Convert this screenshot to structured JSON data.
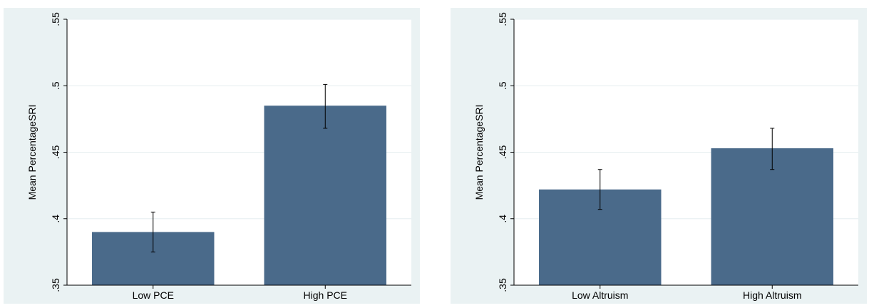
{
  "chart_data": [
    {
      "type": "bar",
      "categories": [
        "Low PCE",
        "High PCE"
      ],
      "values": [
        0.39,
        0.485
      ],
      "ci_low": [
        0.375,
        0.468
      ],
      "ci_high": [
        0.405,
        0.501
      ],
      "ylabel": "Mean PercentageSRI",
      "xlabel": "",
      "ylim": [
        0.35,
        0.55
      ],
      "yticks": [
        ".35",
        ".4",
        ".45",
        ".5",
        ".55"
      ],
      "ytick_values": [
        0.35,
        0.4,
        0.45,
        0.5,
        0.55
      ],
      "grid": true,
      "bar_color": "#4a6a8a"
    },
    {
      "type": "bar",
      "categories": [
        "Low Altruism",
        "High Altruism"
      ],
      "values": [
        0.422,
        0.453
      ],
      "ci_low": [
        0.407,
        0.437
      ],
      "ci_high": [
        0.437,
        0.468
      ],
      "ylabel": "Mean PercentageSRI",
      "xlabel": "",
      "ylim": [
        0.35,
        0.55
      ],
      "yticks": [
        ".35",
        ".4",
        ".45",
        ".5",
        ".55"
      ],
      "ytick_values": [
        0.35,
        0.4,
        0.45,
        0.5,
        0.55
      ],
      "grid": true,
      "bar_color": "#4a6a8a"
    }
  ]
}
